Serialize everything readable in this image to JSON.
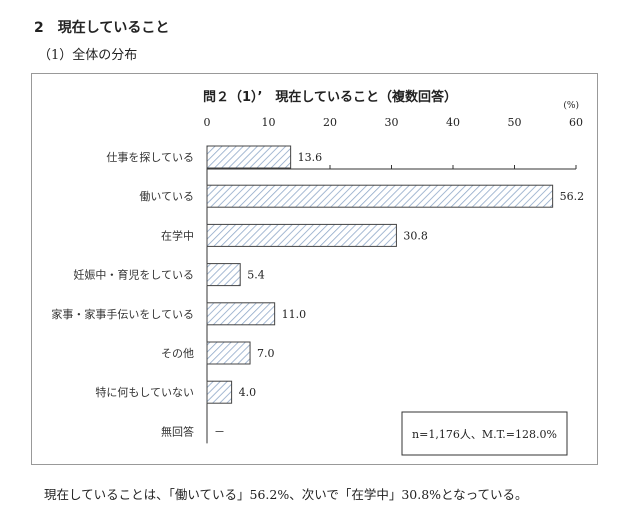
{
  "section_heading": "2　現在していること",
  "subsection_heading": "（1）全体の分布",
  "footer_text": "現在していることは、「働いている」56.2%、次いで「在学中」30.8%となっている。",
  "chart_data": {
    "type": "bar",
    "orientation": "horizontal",
    "title": "問２（1）’　現在していること（複数回答）",
    "unit_label": "(%)",
    "xlim": [
      0,
      60
    ],
    "ticks": [
      0,
      10,
      20,
      30,
      40,
      50,
      60
    ],
    "categories": [
      "仕事を探している",
      "働いている",
      "在学中",
      "妊娠中・育児をしている",
      "家事・家事手伝いをしている",
      "その他",
      "特に何もしていない",
      "無回答"
    ],
    "values": [
      13.6,
      56.2,
      30.8,
      5.4,
      11.0,
      7.0,
      4.0,
      null
    ],
    "value_labels": [
      "13.6",
      "56.2",
      "30.8",
      "5.4",
      "11.0",
      "7.0",
      "4.0",
      "－"
    ],
    "note": "n=1,176人、M.T.=128.0%",
    "bar_fill": "hatched",
    "bar_color": "#8fa8c8",
    "grid": false
  }
}
